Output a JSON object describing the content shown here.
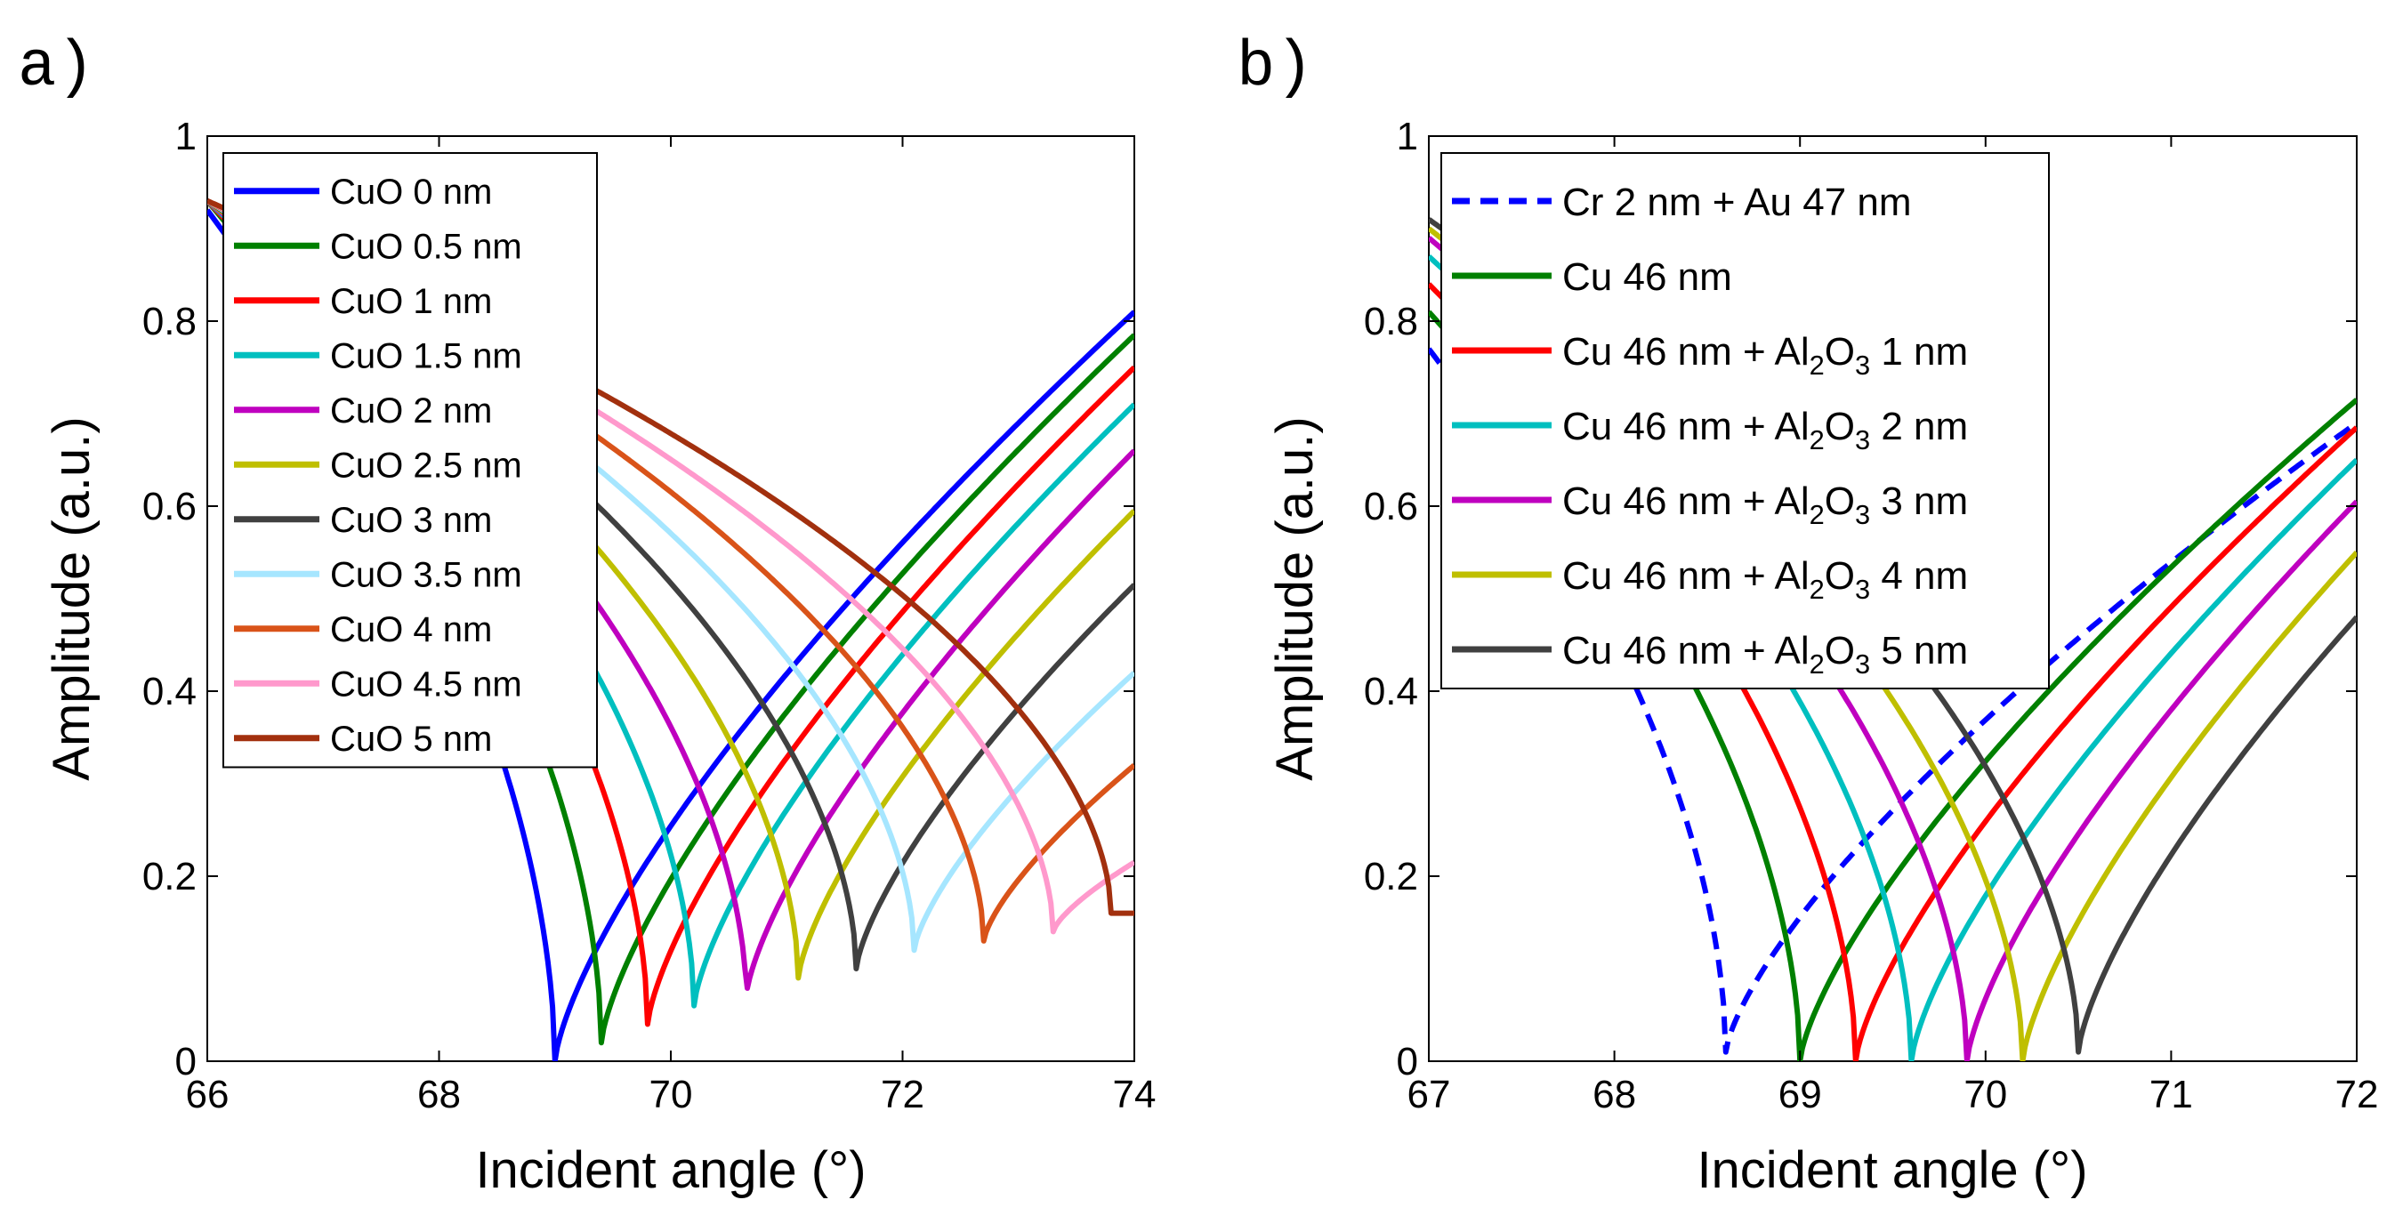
{
  "figure": {
    "panels": [
      "a)",
      "b)"
    ]
  },
  "chart_data": [
    {
      "type": "line",
      "panel_label": "a)",
      "xlabel": "Incident angle (°)",
      "ylabel": "Amplitude (a.u.)",
      "xlim": [
        66,
        74
      ],
      "ylim": [
        0,
        1
      ],
      "xticks": [
        "66",
        "68",
        "70",
        "72",
        "74"
      ],
      "yticks": [
        "0",
        "0.2",
        "0.4",
        "0.6",
        "0.8",
        "1"
      ],
      "grid": false,
      "legend_placement": "top-left",
      "series": [
        {
          "name": "CuO 0 nm",
          "color": "#0000ff",
          "style": "solid",
          "min_x": 69.0,
          "min_y": 0.0,
          "start_y": 0.92,
          "end_y": 0.81
        },
        {
          "name": "CuO 0.5 nm",
          "color": "#008000",
          "style": "solid",
          "min_x": 69.4,
          "min_y": 0.02,
          "start_y": 0.93,
          "end_y": 0.785
        },
        {
          "name": "CuO 1 nm",
          "color": "#ff0000",
          "style": "solid",
          "min_x": 69.8,
          "min_y": 0.04,
          "start_y": 0.93,
          "end_y": 0.75
        },
        {
          "name": "CuO 1.5 nm",
          "color": "#00bfbf",
          "style": "solid",
          "min_x": 70.2,
          "min_y": 0.06,
          "start_y": 0.93,
          "end_y": 0.71
        },
        {
          "name": "CuO 2 nm",
          "color": "#bf00bf",
          "style": "solid",
          "min_x": 70.65,
          "min_y": 0.07,
          "start_y": 0.93,
          "end_y": 0.66
        },
        {
          "name": "CuO 2.5 nm",
          "color": "#bfbf00",
          "style": "solid",
          "min_x": 71.1,
          "min_y": 0.09,
          "start_y": 0.93,
          "end_y": 0.595
        },
        {
          "name": "CuO 3 nm",
          "color": "#404040",
          "style": "solid",
          "min_x": 71.6,
          "min_y": 0.1,
          "start_y": 0.93,
          "end_y": 0.515
        },
        {
          "name": "CuO 3.5 nm",
          "color": "#a6e6ff",
          "style": "solid",
          "min_x": 72.1,
          "min_y": 0.12,
          "start_y": 0.93,
          "end_y": 0.42
        },
        {
          "name": "CuO 4 nm",
          "color": "#d95319",
          "style": "solid",
          "min_x": 72.7,
          "min_y": 0.13,
          "start_y": 0.93,
          "end_y": 0.32
        },
        {
          "name": "CuO 4.5 nm",
          "color": "#ff99cc",
          "style": "solid",
          "min_x": 73.3,
          "min_y": 0.14,
          "start_y": 0.93,
          "end_y": 0.215
        },
        {
          "name": "CuO 5 nm",
          "color": "#a2300e",
          "style": "solid",
          "min_x": 73.8,
          "min_y": 0.16,
          "start_y": 0.93,
          "end_y": 0.16
        }
      ]
    },
    {
      "type": "line",
      "panel_label": "b)",
      "xlabel": "Incident angle (°)",
      "ylabel": "Amplitude (a.u.)",
      "xlim": [
        67,
        72
      ],
      "ylim": [
        0,
        1
      ],
      "xticks": [
        "67",
        "68",
        "69",
        "70",
        "71",
        "72"
      ],
      "yticks": [
        "0",
        "0.2",
        "0.4",
        "0.6",
        "0.8",
        "1"
      ],
      "grid": false,
      "legend_placement": "top-left",
      "series": [
        {
          "name": "Cr 2 nm + Au 47 nm",
          "label_main": "Cr 2 nm + Au 47 nm",
          "color": "#0000ff",
          "style": "dashed",
          "min_x": 68.6,
          "min_y": 0.01,
          "start_y": 0.77,
          "end_y": 0.69
        },
        {
          "name": "Cu 46 nm",
          "label_main": "Cu 46 nm",
          "color": "#008000",
          "style": "solid",
          "min_x": 69.0,
          "min_y": 0.0,
          "start_y": 0.81,
          "end_y": 0.715
        },
        {
          "name": "Cu 46 nm + Al2O3 1 nm",
          "label_pre": "Cu 46 nm + Al",
          "label_sub1": "2",
          "label_mid": "O",
          "label_sub2": "3",
          "label_post": " 1 nm",
          "color": "#ff0000",
          "style": "solid",
          "min_x": 69.3,
          "min_y": 0.0,
          "start_y": 0.84,
          "end_y": 0.685
        },
        {
          "name": "Cu 46 nm + Al2O3 2 nm",
          "label_pre": "Cu 46 nm + Al",
          "label_sub1": "2",
          "label_mid": "O",
          "label_sub2": "3",
          "label_post": " 2 nm",
          "color": "#00bfbf",
          "style": "solid",
          "min_x": 69.6,
          "min_y": 0.0,
          "start_y": 0.87,
          "end_y": 0.65
        },
        {
          "name": "Cu 46 nm + Al2O3 3 nm",
          "label_pre": "Cu 46 nm + Al",
          "label_sub1": "2",
          "label_mid": "O",
          "label_sub2": "3",
          "label_post": " 3 nm",
          "color": "#bf00bf",
          "style": "solid",
          "min_x": 69.9,
          "min_y": 0.0,
          "start_y": 0.89,
          "end_y": 0.605
        },
        {
          "name": "Cu 46 nm + Al2O3 4 nm",
          "label_pre": "Cu 46 nm + Al",
          "label_sub1": "2",
          "label_mid": "O",
          "label_sub2": "3",
          "label_post": " 4 nm",
          "color": "#bfbf00",
          "style": "solid",
          "min_x": 70.2,
          "min_y": 0.0,
          "start_y": 0.9,
          "end_y": 0.55
        },
        {
          "name": "Cu 46 nm + Al2O3 5 nm",
          "label_pre": "Cu 46 nm + Al",
          "label_sub1": "2",
          "label_mid": "O",
          "label_sub2": "3",
          "label_post": " 5 nm",
          "color": "#404040",
          "style": "solid",
          "min_x": 70.5,
          "min_y": 0.01,
          "start_y": 0.91,
          "end_y": 0.48
        }
      ]
    }
  ]
}
